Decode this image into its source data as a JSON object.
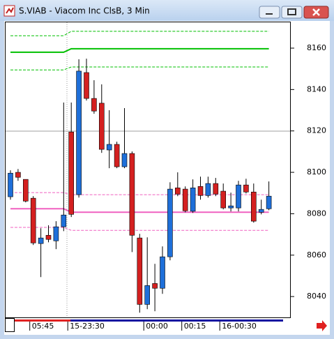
{
  "window_title": "S.VIAB - Viacom Inc ClsB, 3 Min",
  "chart_data": {
    "type": "candlestick",
    "up_color": "#1e6fd9",
    "down_color": "#d42020",
    "ylim": [
      8029.6,
      8172.8
    ],
    "yticks": [
      8040,
      8060,
      8080,
      8100,
      8120,
      8140,
      8160
    ],
    "xticks": [
      {
        "value": 3,
        "label": "05:45"
      },
      {
        "value": 8,
        "label": "15-23:30"
      },
      {
        "value": 18,
        "label": "00:00"
      },
      {
        "value": 23,
        "label": "00:15"
      },
      {
        "value": 28,
        "label": "16-00:30"
      }
    ],
    "open": [
      8088.2,
      8100.0,
      8096.6,
      8087.5,
      8065.6,
      8069.6,
      8066.9,
      8073.7,
      8119.5,
      8089.2,
      8148.2,
      8135.7,
      8133.4,
      8110.8,
      8113.5,
      8102.7,
      8109.1,
      8068.3,
      8036.2,
      8046.3,
      8044.0,
      8059.2,
      8092.5,
      8091.9,
      8081.2,
      8093.2,
      8088.8,
      8094.6,
      8090.9,
      8082.8,
      8082.8,
      8093.9,
      8090.5,
      8080.7,
      8082.4
    ],
    "high": [
      8101.0,
      8101.6,
      8096.6,
      8088.5,
      8073.0,
      8074.4,
      8076.4,
      8133.7,
      8133.7,
      8154.6,
      8154.9,
      8144.5,
      8142.5,
      8130.0,
      8114.8,
      8131.0,
      8110.1,
      8070.3,
      8068.6,
      8055.8,
      8064.2,
      8095.2,
      8100.0,
      8093.2,
      8096.6,
      8097.9,
      8097.9,
      8097.3,
      8094.6,
      8090.2,
      8095.9,
      8096.9,
      8094.6,
      8086.8,
      8095.6
    ],
    "low": [
      8086.8,
      8095.9,
      8085.5,
      8064.9,
      8049.4,
      8066.2,
      8062.9,
      8071.6,
      8078.4,
      8087.8,
      8134.7,
      8128.3,
      8109.4,
      8102.0,
      8102.0,
      8102.0,
      8061.5,
      8032.2,
      8033.9,
      8032.9,
      8041.3,
      8057.5,
      8088.5,
      8080.7,
      8080.4,
      8086.8,
      8087.8,
      8088.5,
      8082.1,
      8081.1,
      8081.1,
      8089.8,
      8075.7,
      8079.7,
      8081.7
    ],
    "close": [
      8099.6,
      8097.6,
      8086.1,
      8065.9,
      8068.3,
      8067.6,
      8073.7,
      8079.4,
      8079.7,
      8148.9,
      8135.7,
      8129.6,
      8111.1,
      8113.5,
      8102.7,
      8109.1,
      8069.6,
      8036.2,
      8045.3,
      8044.0,
      8059.2,
      8091.9,
      8089.5,
      8081.4,
      8092.5,
      8088.8,
      8094.6,
      8089.5,
      8082.8,
      8083.8,
      8093.9,
      8090.5,
      8076.4,
      8082.1,
      8088.5
    ],
    "hline": {
      "value": 8119.9,
      "color": "#a0a0a0"
    },
    "overlays": [
      {
        "color": "#00c000",
        "dashed": false,
        "values": [
          8158.0,
          8158.0,
          8158.0,
          8158.0,
          8158.0,
          8158.0,
          8158.0,
          8158.0,
          8159.7,
          8159.7,
          8159.7,
          8159.7,
          8159.7,
          8159.7,
          8159.7,
          8159.7,
          8159.7,
          8159.7,
          8159.7,
          8159.7,
          8159.7,
          8159.7,
          8159.7,
          8159.7,
          8159.7,
          8159.7,
          8159.7,
          8159.7,
          8159.7,
          8159.7,
          8159.7,
          8159.7,
          8159.7,
          8159.7,
          8159.7
        ]
      },
      {
        "color": "#00c000",
        "dashed": true,
        "values": [
          8166.0,
          8166.0,
          8166.0,
          8166.0,
          8166.0,
          8166.0,
          8166.0,
          8166.0,
          8168.1,
          8168.1,
          8168.1,
          8168.1,
          8168.1,
          8168.1,
          8168.1,
          8168.1,
          8168.1,
          8168.1,
          8168.1,
          8168.1,
          8168.1,
          8168.1,
          8168.1,
          8168.1,
          8168.1,
          8168.1,
          8168.1,
          8168.1,
          8168.1,
          8168.1,
          8168.1,
          8168.1,
          8168.1,
          8168.1,
          8168.1
        ]
      },
      {
        "color": "#00c000",
        "dashed": true,
        "values": [
          8149.5,
          8149.5,
          8149.5,
          8149.5,
          8149.5,
          8149.5,
          8149.5,
          8149.5,
          8150.9,
          8150.9,
          8150.9,
          8150.9,
          8150.9,
          8150.9,
          8150.9,
          8150.9,
          8150.9,
          8150.9,
          8150.9,
          8150.9,
          8150.9,
          8150.9,
          8150.9,
          8150.9,
          8150.9,
          8150.9,
          8150.9,
          8150.9,
          8150.9,
          8150.9,
          8150.9,
          8150.9,
          8150.9,
          8150.9,
          8150.9
        ]
      },
      {
        "color": "#f060c0",
        "dashed": false,
        "values": [
          8082.4,
          8082.4,
          8082.4,
          8082.4,
          8082.4,
          8082.4,
          8082.4,
          8082.4,
          8080.7,
          8080.7,
          8080.7,
          8080.7,
          8080.7,
          8080.7,
          8080.7,
          8080.7,
          8080.7,
          8080.7,
          8080.7,
          8080.7,
          8080.7,
          8080.7,
          8080.7,
          8080.7,
          8080.7,
          8080.7,
          8080.7,
          8080.7,
          8080.7,
          8080.7,
          8080.7,
          8080.7,
          8080.7,
          8080.7,
          8080.7
        ]
      },
      {
        "color": "#f060c0",
        "dashed": true,
        "values": [
          8090.2,
          8090.2,
          8090.2,
          8090.2,
          8090.2,
          8090.2,
          8090.2,
          8090.2,
          8089.2,
          8089.2,
          8089.2,
          8089.2,
          8089.2,
          8089.2,
          8089.2,
          8089.2,
          8089.2,
          8089.2,
          8089.2,
          8089.2,
          8089.2,
          8089.2,
          8089.2,
          8089.2,
          8089.2,
          8089.2,
          8089.2,
          8089.2,
          8089.2,
          8089.2,
          8089.2,
          8089.2,
          8089.2,
          8089.2,
          8089.2
        ]
      },
      {
        "color": "#f060c0",
        "dashed": true,
        "values": [
          8073.4,
          8073.4,
          8073.4,
          8073.4,
          8073.4,
          8073.4,
          8073.4,
          8073.4,
          8072.0,
          8072.0,
          8072.0,
          8072.0,
          8072.0,
          8072.0,
          8072.0,
          8072.0,
          8072.0,
          8072.0,
          8072.0,
          8072.0,
          8072.0,
          8072.0,
          8072.0,
          8072.0,
          8072.0,
          8072.0,
          8072.0,
          8072.0,
          8072.0,
          8072.0,
          8072.0,
          8072.0,
          8072.0,
          8072.0,
          8072.0
        ]
      }
    ]
  }
}
